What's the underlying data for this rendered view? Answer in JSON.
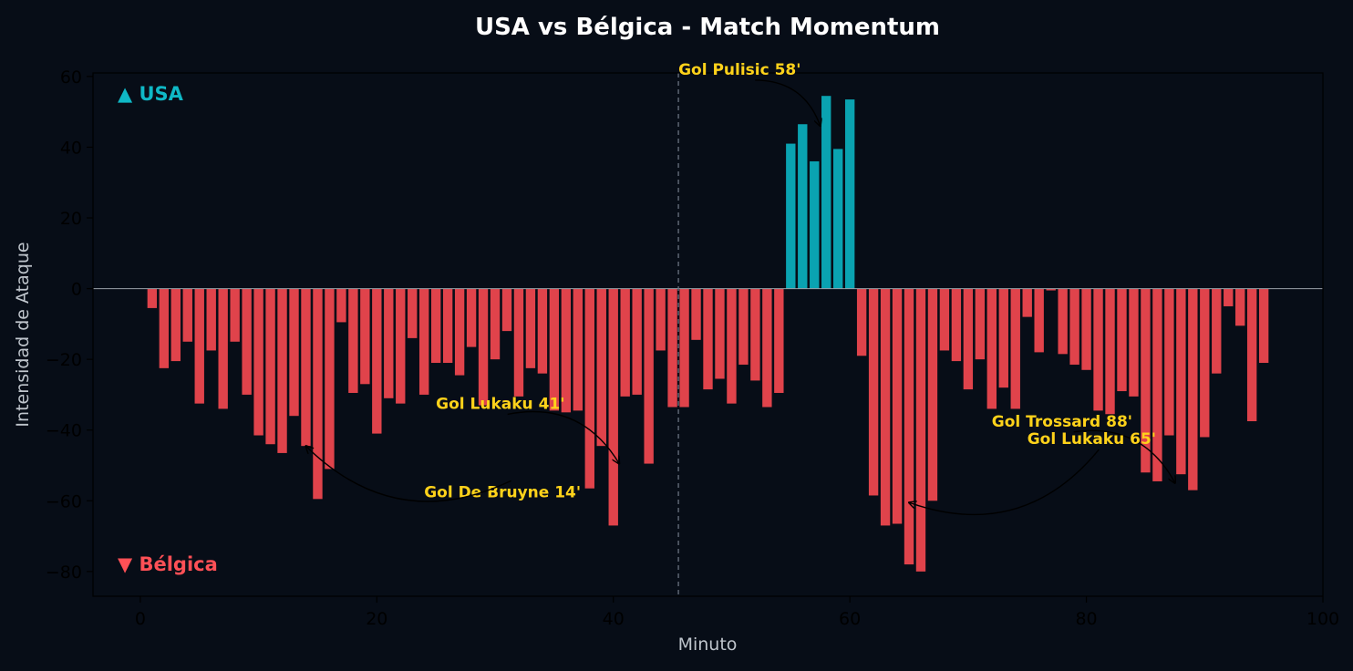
{
  "colors": {
    "background": "#070d17",
    "team_positive": "#0aa3b1",
    "team_negative": "#e0434b",
    "annotation": "#ffd21a",
    "axis_text": "#000000",
    "title_text": "#ffffff",
    "label_text": "#bfc5cc",
    "zero_line": "#9aa1a9",
    "halftime_line": "#6b7280"
  },
  "chart_data": {
    "type": "bar",
    "title": "USA vs Bélgica - Match Momentum",
    "xlabel": "Minuto",
    "ylabel": "Intensidad de Ataque",
    "xlim": [
      -4,
      100
    ],
    "ylim": [
      -87,
      61
    ],
    "xticks": [
      0,
      20,
      40,
      60,
      80,
      100
    ],
    "yticks": [
      -80,
      -60,
      -40,
      -20,
      0,
      20,
      40,
      60
    ],
    "grid": false,
    "halftime_marker_x": 45.5,
    "team_labels": {
      "positive": "▲ USA",
      "negative": "▼ Bélgica"
    },
    "x": [
      1,
      2,
      3,
      4,
      5,
      6,
      7,
      8,
      9,
      10,
      11,
      12,
      13,
      14,
      15,
      16,
      17,
      18,
      19,
      20,
      21,
      22,
      23,
      24,
      25,
      26,
      27,
      28,
      29,
      30,
      31,
      32,
      33,
      34,
      35,
      36,
      37,
      38,
      39,
      40,
      41,
      42,
      43,
      44,
      45,
      46,
      47,
      48,
      49,
      50,
      51,
      52,
      53,
      54,
      55,
      56,
      57,
      58,
      59,
      60,
      61,
      62,
      63,
      64,
      65,
      66,
      67,
      68,
      69,
      70,
      71,
      72,
      73,
      74,
      75,
      76,
      77,
      78,
      79,
      80,
      81,
      82,
      83,
      84,
      85,
      86,
      87,
      88,
      89,
      90,
      91,
      92,
      93,
      94,
      95
    ],
    "values": [
      -5.5,
      -22.5,
      -20.5,
      -15,
      -32.5,
      -17.5,
      -34,
      -15,
      -30,
      -41.5,
      -44,
      -46.5,
      -36,
      -44.5,
      -59.5,
      -51,
      -9.5,
      -29.5,
      -27,
      -41,
      -31,
      -32.5,
      -14,
      -30,
      -21,
      -21,
      -24.5,
      -16.5,
      -33,
      -20,
      -12,
      -30.5,
      -22.5,
      -24,
      -34.5,
      -35,
      -34.5,
      -56.5,
      -44.5,
      -67,
      -30.5,
      -30,
      -49.5,
      -17.5,
      -33.5,
      -33.5,
      -14.5,
      -28.5,
      -25.5,
      -32.5,
      -21.5,
      -26,
      -33.5,
      -29.5,
      41,
      46.5,
      36,
      54.5,
      39.5,
      53.5,
      -19,
      -58.5,
      -67,
      -66.5,
      -78,
      -80,
      -60,
      -17.5,
      -20.5,
      -28.5,
      -20,
      -34,
      -28,
      -34,
      -8,
      -18,
      -0.5,
      -18.5,
      -21.5,
      -23,
      -34.5,
      -35.5,
      -29,
      -30.5,
      -52,
      -54.5,
      -41.5,
      -52.5,
      -57,
      -42,
      -24,
      -5,
      -10.5,
      -37.5,
      -21
    ],
    "annotations": [
      {
        "text": "Gol Pulisic 58'",
        "target": [
          57.5,
          46
        ],
        "label_at": [
          45.5,
          60.5
        ]
      },
      {
        "text": "Gol Lukaku 41'",
        "target": [
          40.5,
          -49.5
        ],
        "label_at": [
          25,
          -34
        ]
      },
      {
        "text": "Gol De Bruyne 14'",
        "target": [
          14,
          -44.5
        ],
        "label_at": [
          24,
          -59
        ]
      },
      {
        "text": "Gol Trossard 88'",
        "target": [
          87.5,
          -55
        ],
        "label_at": [
          72,
          -39
        ]
      },
      {
        "text": "Gol Lukaku 65'",
        "target": [
          65,
          -60.5
        ],
        "label_at": [
          75,
          -44
        ]
      }
    ]
  }
}
